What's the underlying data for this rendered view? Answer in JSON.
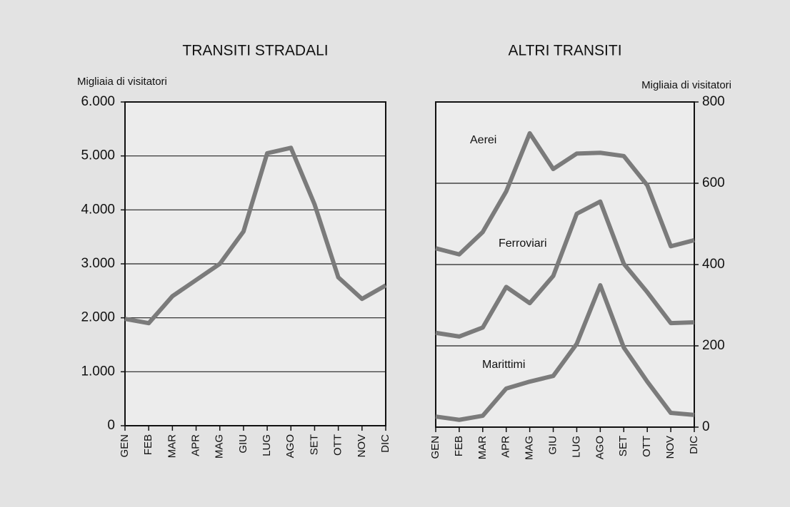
{
  "chart_data": [
    {
      "type": "line",
      "title": "TRANSITI STRADALI",
      "y_label": "Migliaia di visitatori",
      "categories": [
        "GEN",
        "FEB",
        "MAR",
        "APR",
        "MAG",
        "GIU",
        "LUG",
        "AGO",
        "SET",
        "OTT",
        "NOV",
        "DIC"
      ],
      "series": [
        {
          "name": null,
          "color": "#7b7b7b",
          "values": [
            1980,
            1900,
            2400,
            2700,
            3000,
            3600,
            5050,
            5150,
            4100,
            2750,
            2350,
            2600
          ]
        }
      ],
      "ylim": [
        0,
        6000
      ],
      "yticks": [
        0,
        {
          "value": 1000,
          "label": "1.000"
        },
        {
          "value": 2000,
          "label": "2.000"
        },
        {
          "value": 3000,
          "label": "3.000"
        },
        {
          "value": 4000,
          "label": "4.000"
        },
        {
          "value": 5000,
          "label": "5.000"
        },
        {
          "value": 6000,
          "label": "6.000"
        }
      ],
      "grid": true,
      "y_axis_side": "left"
    },
    {
      "type": "line",
      "title": "ALTRI TRANSITI",
      "y_label": "Migliaia di visitatori",
      "categories": [
        "GEN",
        "FEB",
        "MAR",
        "APR",
        "MAG",
        "GIU",
        "LUG",
        "AGO",
        "SET",
        "OTT",
        "NOV",
        "DIC"
      ],
      "series": [
        {
          "name": "Aerei",
          "color": "#7b7b7b",
          "values": [
            440,
            425,
            480,
            580,
            723,
            635,
            673,
            675,
            667,
            595,
            445,
            460
          ]
        },
        {
          "name": "Ferroviari",
          "color": "#7b7b7b",
          "values": [
            232,
            223,
            245,
            345,
            305,
            372,
            525,
            555,
            402,
            332,
            256,
            258
          ]
        },
        {
          "name": "Marittimi",
          "color": "#7b7b7b",
          "values": [
            26,
            18,
            28,
            95,
            112,
            126,
            205,
            349,
            196,
            112,
            35,
            30
          ]
        }
      ],
      "ylim": [
        0,
        800
      ],
      "yticks": [
        0,
        200,
        400,
        600,
        800
      ],
      "grid": true,
      "y_axis_side": "right"
    }
  ]
}
